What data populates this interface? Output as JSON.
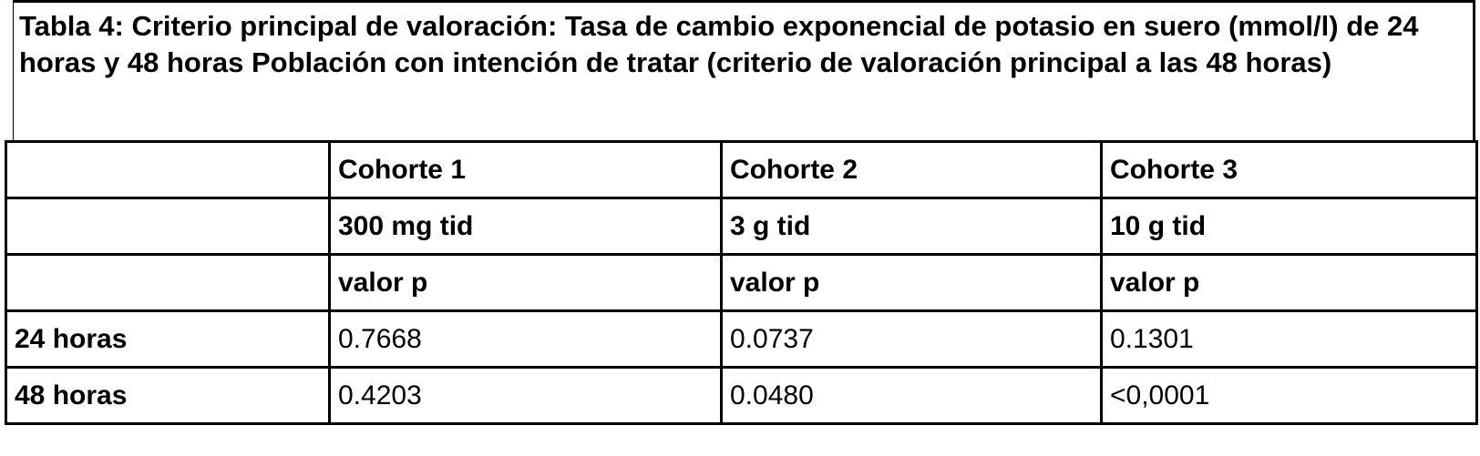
{
  "title": "Tabla 4: Criterio principal de valoración: Tasa de cambio exponencial de potasio en suero (mmol/l) de 24 horas y 48 horas Población con intención de tratar (criterio de valoración principal a las 48 horas)",
  "header_rows": [
    [
      "",
      "Cohorte 1",
      "Cohorte 2",
      "Cohorte 3"
    ],
    [
      "",
      "300 mg tid",
      "3 g tid",
      "10 g tid"
    ],
    [
      "",
      "valor p",
      "valor p",
      "valor p"
    ]
  ],
  "rows": [
    [
      "24 horas",
      "0.7668",
      "0.0737",
      "0.1301"
    ],
    [
      "48 horas",
      "0.4203",
      "0.0480",
      "<0,0001"
    ]
  ]
}
